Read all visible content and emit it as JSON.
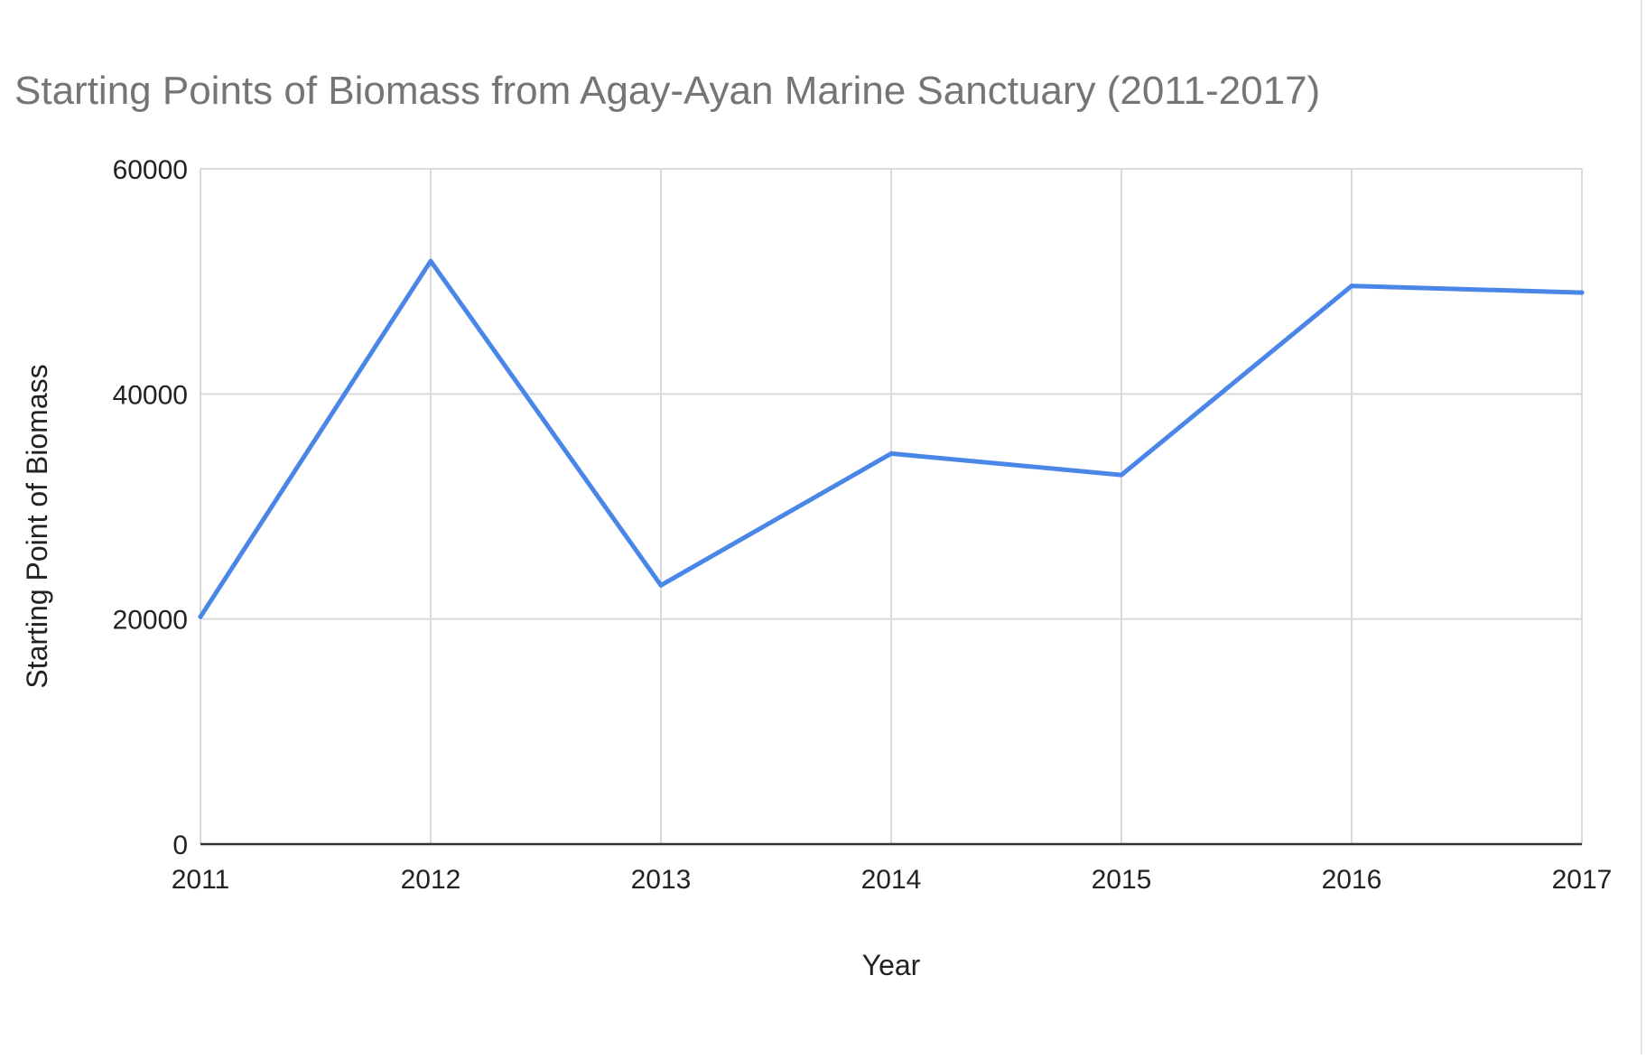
{
  "chart_data": {
    "type": "line",
    "title": "Starting Points of Biomass from Agay-Ayan Marine Sanctuary (2011-2017)",
    "xlabel": "Year",
    "ylabel": "Starting Point of Biomass",
    "categories": [
      "2011",
      "2012",
      "2013",
      "2014",
      "2015",
      "2016",
      "2017"
    ],
    "series": [
      {
        "values": [
          20200,
          51800,
          23000,
          34700,
          32800,
          49600,
          49000
        ],
        "color": "#4a86e8"
      }
    ],
    "ylim": [
      0,
      60000
    ],
    "yticks": [
      0,
      20000,
      40000,
      60000
    ],
    "grid": true,
    "legend": "none"
  }
}
